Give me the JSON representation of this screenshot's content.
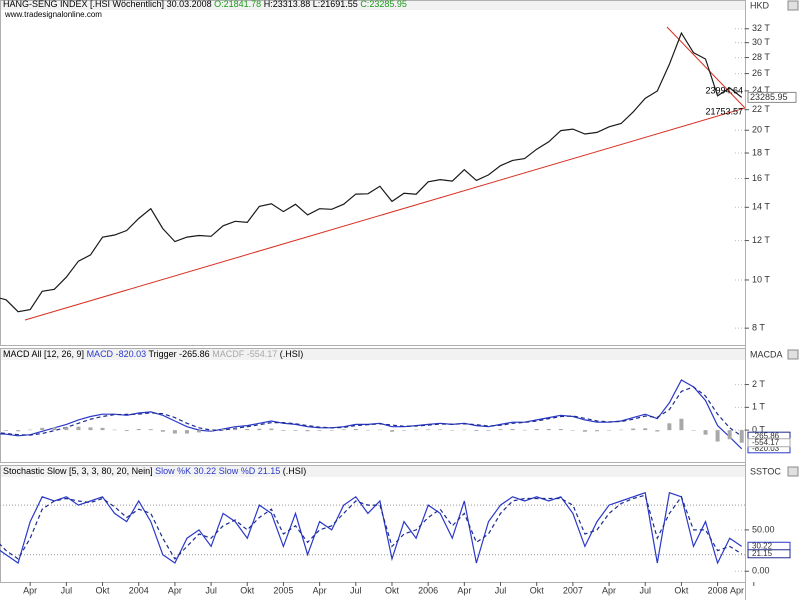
{
  "chart_data": [
    {
      "type": "line",
      "title": "HANG-SENG INDEX [.HSI  Wöchentlich]",
      "date": "30.03.2008",
      "open": "O:21841.78",
      "high": "H:23313.88",
      "low": "L:21691.55",
      "close": "C:23285.95",
      "source": "www.tradesignalonline.com",
      "unit": "HKD",
      "log_scale": true,
      "ylim": [
        7400,
        34900
      ],
      "yticks": [
        {
          "value": 8000,
          "label": "8 T"
        },
        {
          "value": 10000,
          "label": "10 T"
        },
        {
          "value": 12000,
          "label": "12 T"
        },
        {
          "value": 14000,
          "label": "14 T"
        },
        {
          "value": 16000,
          "label": "16 T"
        },
        {
          "value": 18000,
          "label": "18 T"
        },
        {
          "value": 20000,
          "label": "20 T"
        },
        {
          "value": 22000,
          "label": "22 T"
        },
        {
          "value": 24000,
          "label": "24 T"
        },
        {
          "value": 26000,
          "label": "26 T"
        },
        {
          "value": 28000,
          "label": "28 T"
        },
        {
          "value": 30000,
          "label": "30 T"
        },
        {
          "value": 32000,
          "label": "32 T"
        }
      ],
      "series": [
        {
          "color": "#1a1a1a",
          "style": "line",
          "values": [
            9258,
            9122,
            8634,
            8717,
            9487,
            9577,
            10134,
            10908,
            11229,
            12190,
            12317,
            12576,
            13289,
            13908,
            12682,
            11942,
            12198,
            12286,
            12239,
            12850,
            13120,
            13055,
            14060,
            14230,
            13721,
            14196,
            13516,
            13909,
            13868,
            14201,
            14880,
            14904,
            15429,
            14386,
            14937,
            14876,
            15753,
            15918,
            15805,
            16661,
            15857,
            16267,
            16971,
            17392,
            17543,
            18324,
            18960,
            19965,
            20107,
            19652,
            19801,
            20319,
            20634,
            21773,
            23185,
            23984,
            27142,
            31353,
            28644,
            27813,
            23456,
            24332,
            23286,
            null
          ]
        }
      ],
      "current": 23285.95,
      "annotations": [
        {
          "value": 23994.64,
          "color": "#d83020"
        },
        {
          "value": 21753.57,
          "color": "#d83020"
        }
      ]
    },
    {
      "type": "line",
      "title": "MACD All [12, 26, 9]",
      "source": "(.HSI)",
      "unit": "MACDA",
      "ylim": [
        -1400,
        3080
      ],
      "yticks": [
        {
          "value": 0,
          "label": "0 T"
        },
        {
          "value": 1000,
          "label": "1 T"
        },
        {
          "value": 2000,
          "label": "2 T"
        }
      ],
      "series": [
        {
          "name": "MACD",
          "current": -820.03,
          "color": "#2a38c8",
          "style": "line",
          "values": [
            -150,
            -180,
            -250,
            -200,
            -50,
            100,
            250,
            450,
            600,
            700,
            700,
            650,
            750,
            800,
            650,
            400,
            150,
            0,
            -50,
            50,
            150,
            200,
            300,
            400,
            300,
            250,
            150,
            100,
            100,
            150,
            250,
            250,
            300,
            150,
            150,
            200,
            250,
            300,
            250,
            300,
            200,
            150,
            250,
            350,
            350,
            450,
            550,
            650,
            600,
            450,
            350,
            350,
            400,
            550,
            700,
            500,
            1200,
            2200,
            1900,
            1300,
            200,
            -300,
            -820,
            null
          ]
        },
        {
          "name": "Trigger",
          "current": -265.86,
          "color": "#1c2a90",
          "style": "dashed",
          "values": [
            -100,
            -150,
            -200,
            -220,
            -150,
            -20,
            120,
            300,
            480,
            600,
            680,
            690,
            700,
            760,
            720,
            550,
            300,
            100,
            0,
            0,
            80,
            150,
            240,
            330,
            330,
            280,
            200,
            130,
            100,
            120,
            200,
            240,
            280,
            220,
            170,
            180,
            220,
            270,
            260,
            280,
            240,
            180,
            210,
            300,
            340,
            400,
            500,
            600,
            620,
            520,
            400,
            360,
            380,
            480,
            620,
            560,
            900,
            1700,
            1900,
            1500,
            700,
            100,
            -266,
            null
          ]
        },
        {
          "name": "MACDF",
          "current": -554.17,
          "color": "#a8a8a8",
          "style": "histogram",
          "values": [
            -50,
            -30,
            -50,
            20,
            100,
            120,
            130,
            150,
            120,
            100,
            20,
            -40,
            50,
            40,
            -70,
            -150,
            -150,
            -100,
            -50,
            50,
            70,
            50,
            60,
            70,
            -30,
            -30,
            -50,
            -30,
            0,
            30,
            50,
            10,
            20,
            -70,
            -20,
            20,
            30,
            30,
            -10,
            20,
            -40,
            -30,
            40,
            50,
            10,
            50,
            50,
            50,
            -20,
            -70,
            -50,
            -10,
            20,
            70,
            80,
            -60,
            300,
            500,
            0,
            -200,
            -500,
            -400,
            -554,
            null
          ]
        }
      ]
    },
    {
      "type": "line",
      "title": "Stochastic Slow [5, 3, 3, 80, 20, Nein]",
      "source": "(.HSI)",
      "unit": "SSTOC",
      "ylim": [
        -13,
        114
      ],
      "yticks": [
        {
          "value": 0,
          "label": "0.00"
        },
        {
          "value": 50,
          "label": "50.00"
        }
      ],
      "bands": [
        20,
        80
      ],
      "categories": [
        null,
        null,
        null,
        "Apr",
        null,
        null,
        "Jul",
        null,
        null,
        "Okt",
        null,
        null,
        "2004",
        null,
        null,
        "Apr",
        null,
        null,
        "Jul",
        null,
        null,
        "Okt",
        null,
        null,
        "2005",
        null,
        null,
        "Apr",
        null,
        null,
        "Jul",
        null,
        null,
        "Okt",
        null,
        null,
        "2006",
        null,
        null,
        "Apr",
        null,
        null,
        "Jul",
        null,
        null,
        "Okt",
        null,
        null,
        "2007",
        null,
        null,
        "Apr",
        null,
        null,
        "Jul",
        null,
        null,
        "Okt",
        null,
        null,
        "2008",
        null,
        null,
        "Apr"
      ],
      "series": [
        {
          "name": "Slow %K",
          "current": 30.22,
          "color": "#2a38c8",
          "style": "line",
          "values": [
            30,
            20,
            10,
            60,
            90,
            85,
            90,
            80,
            85,
            90,
            70,
            60,
            85,
            60,
            20,
            10,
            40,
            50,
            30,
            70,
            60,
            40,
            80,
            70,
            30,
            70,
            20,
            60,
            50,
            80,
            90,
            70,
            85,
            15,
            60,
            40,
            80,
            70,
            40,
            85,
            10,
            60,
            80,
            90,
            85,
            90,
            85,
            90,
            70,
            30,
            60,
            80,
            85,
            90,
            95,
            10,
            95,
            90,
            30,
            60,
            10,
            40,
            30,
            null
          ]
        },
        {
          "name": "Slow %D",
          "current": 21.15,
          "color": "#1c2a90",
          "style": "dashed",
          "values": [
            40,
            25,
            15,
            40,
            75,
            85,
            88,
            85,
            83,
            88,
            78,
            65,
            75,
            70,
            40,
            15,
            30,
            45,
            40,
            55,
            62,
            50,
            65,
            75,
            45,
            55,
            35,
            50,
            55,
            70,
            85,
            80,
            80,
            30,
            45,
            50,
            65,
            75,
            55,
            70,
            35,
            45,
            70,
            85,
            88,
            88,
            88,
            88,
            80,
            45,
            50,
            70,
            82,
            88,
            92,
            40,
            70,
            90,
            50,
            50,
            25,
            30,
            21,
            null
          ]
        }
      ]
    }
  ]
}
